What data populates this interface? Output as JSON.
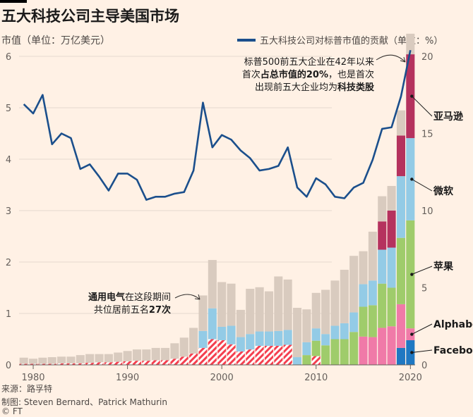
{
  "title": "五大科技公司主导美国市场",
  "left_axis_title": "市值（单位：万亿美元）",
  "legend_line_label": "五大科技公司对标普市值的贡献（单位：%）",
  "source": "来源：路孚特",
  "credit": "制图: Steven Bernard、Patrick Mathurin",
  "copyright": "© FT",
  "colors": {
    "background": "#fff1e5",
    "line": "#1b4f8c",
    "ge": "#f43f4f",
    "facebook": "#1f78c2",
    "alphabet": "#f07aa8",
    "apple": "#9fcc6b",
    "microsoft": "#93cbe6",
    "amazon": "#b5325e",
    "other": "#d9cbbf"
  },
  "annotations": {
    "top_line1": "标普500前五大企业在42年以来",
    "top_line2a": "首次",
    "top_line2b": "占总市值的20%",
    "top_line2c": "，也是首次",
    "top_line3a": "出现前五大企业均为",
    "top_line3b": "科技类股",
    "ge_line1a": "通用电气",
    "ge_line1b": "在这段期间",
    "ge_line2a": "共位居前五名",
    "ge_line2b": "27次"
  },
  "chart_data": {
    "type": "bar",
    "stacked": true,
    "x_axis": {
      "ticks": [
        "1980",
        "1990",
        "2000",
        "2010",
        "2020"
      ],
      "range": [
        1978.5,
        2020.5
      ]
    },
    "left_axis": {
      "label": "市值（单位：万亿美元）",
      "ticks": [
        "0",
        "1",
        "2",
        "3",
        "4",
        "5",
        "6"
      ],
      "range": [
        0,
        6
      ]
    },
    "right_axis": {
      "label": "五大科技公司对标普市值的贡献（单位：%）",
      "ticks": [
        "0",
        "5",
        "10",
        "15",
        "20"
      ],
      "range": [
        0,
        20
      ]
    },
    "grid": true,
    "years": [
      1979,
      1980,
      1981,
      1982,
      1983,
      1984,
      1985,
      1986,
      1987,
      1988,
      1989,
      1990,
      1991,
      1992,
      1993,
      1994,
      1995,
      1996,
      1997,
      1998,
      1999,
      2000,
      2001,
      2002,
      2003,
      2004,
      2005,
      2006,
      2007,
      2008,
      2009,
      2010,
      2011,
      2012,
      2013,
      2014,
      2015,
      2016,
      2017,
      2018,
      2019,
      2020
    ],
    "stack_order": [
      "facebook",
      "alphabet",
      "ge",
      "apple",
      "microsoft",
      "amazon",
      "other"
    ],
    "series": [
      {
        "key": "facebook",
        "name": "Facebook",
        "values": [
          0,
          0,
          0,
          0,
          0,
          0,
          0,
          0,
          0,
          0,
          0,
          0,
          0,
          0,
          0,
          0,
          0,
          0,
          0,
          0,
          0,
          0,
          0,
          0,
          0,
          0,
          0,
          0,
          0,
          0,
          0,
          0,
          0,
          0,
          0,
          0,
          0,
          0,
          0,
          0,
          0.33,
          0.48
        ]
      },
      {
        "key": "alphabet",
        "name": "Alphabet",
        "values": [
          0,
          0,
          0,
          0,
          0,
          0,
          0,
          0,
          0,
          0,
          0,
          0,
          0,
          0,
          0,
          0,
          0,
          0,
          0,
          0,
          0,
          0,
          0,
          0,
          0,
          0,
          0,
          0,
          0,
          0,
          0,
          0,
          0,
          0,
          0,
          0,
          0.55,
          0.54,
          0.72,
          0.75,
          0.85,
          0.23
        ]
      },
      {
        "key": "ge",
        "name": "通用电气",
        "values": [
          0.02,
          0.02,
          0.02,
          0.02,
          0.03,
          0.03,
          0.03,
          0.04,
          0.05,
          0.05,
          0.06,
          0.07,
          0.08,
          0.08,
          0.09,
          0.09,
          0.12,
          0.16,
          0.22,
          0.33,
          0.5,
          0.48,
          0.4,
          0.26,
          0.3,
          0.37,
          0.37,
          0.37,
          0.39,
          0,
          0,
          0.17,
          0,
          0,
          0,
          0,
          0,
          0,
          0,
          0,
          0,
          0
        ]
      },
      {
        "key": "apple",
        "name": "苹果",
        "values": [
          0,
          0,
          0,
          0,
          0,
          0,
          0,
          0,
          0,
          0,
          0,
          0,
          0,
          0,
          0,
          0,
          0,
          0,
          0,
          0,
          0,
          0,
          0,
          0,
          0,
          0,
          0,
          0,
          0,
          0,
          0.19,
          0.3,
          0.38,
          0.5,
          0.5,
          0.64,
          0.58,
          0.62,
          0.86,
          0.75,
          1.29,
          2.1
        ]
      },
      {
        "key": "microsoft",
        "name": "微软",
        "values": [
          0,
          0,
          0,
          0,
          0,
          0,
          0,
          0,
          0,
          0,
          0,
          0,
          0,
          0,
          0,
          0,
          0,
          0,
          0,
          0.33,
          0.6,
          0.26,
          0.36,
          0.28,
          0.3,
          0.28,
          0.28,
          0.29,
          0.29,
          0.15,
          0.25,
          0.24,
          0.22,
          0.26,
          0.31,
          0.38,
          0.44,
          0.48,
          0.66,
          0.78,
          1.2,
          1.6
        ]
      },
      {
        "key": "amazon",
        "name": "亚马逊",
        "values": [
          0,
          0,
          0,
          0,
          0,
          0,
          0,
          0,
          0,
          0,
          0,
          0,
          0,
          0,
          0,
          0,
          0,
          0,
          0,
          0,
          0,
          0,
          0,
          0,
          0,
          0,
          0,
          0,
          0,
          0,
          0,
          0,
          0,
          0,
          0,
          0,
          0,
          0,
          0.55,
          0.72,
          0.79,
          1.63
        ]
      },
      {
        "key": "other",
        "name": "",
        "values": [
          0.12,
          0.1,
          0.12,
          0.13,
          0.13,
          0.13,
          0.16,
          0.17,
          0.16,
          0.16,
          0.18,
          0.2,
          0.22,
          0.22,
          0.24,
          0.24,
          0.3,
          0.37,
          0.5,
          0.69,
          0.94,
          0.87,
          0.82,
          0.53,
          0.88,
          0.86,
          0.78,
          1.06,
          0.98,
          0.96,
          0.64,
          0.69,
          0.86,
          0.88,
          1.04,
          1.1,
          0.64,
          0.95,
          0.49,
          0.48,
          0.49,
          0.4
        ]
      }
    ],
    "line": {
      "name": "五大科技公司对标普市值的贡献（单位：%）",
      "axis": "right",
      "values": [
        16.9,
        16.3,
        17.5,
        14.3,
        15.0,
        14.7,
        12.7,
        13.0,
        12.2,
        11.3,
        12.4,
        12.4,
        12.0,
        10.7,
        10.9,
        10.9,
        11.1,
        11.2,
        12.6,
        17.0,
        14.1,
        14.9,
        14.6,
        13.9,
        13.4,
        12.6,
        12.7,
        12.9,
        14.1,
        11.5,
        10.9,
        12.1,
        11.7,
        10.9,
        10.8,
        11.5,
        11.8,
        13.3,
        15.3,
        15.4,
        17.4,
        20.4
      ]
    },
    "series_labels": [
      "亚马逊",
      "微软",
      "苹果",
      "Alphabet",
      "Facebook"
    ]
  }
}
